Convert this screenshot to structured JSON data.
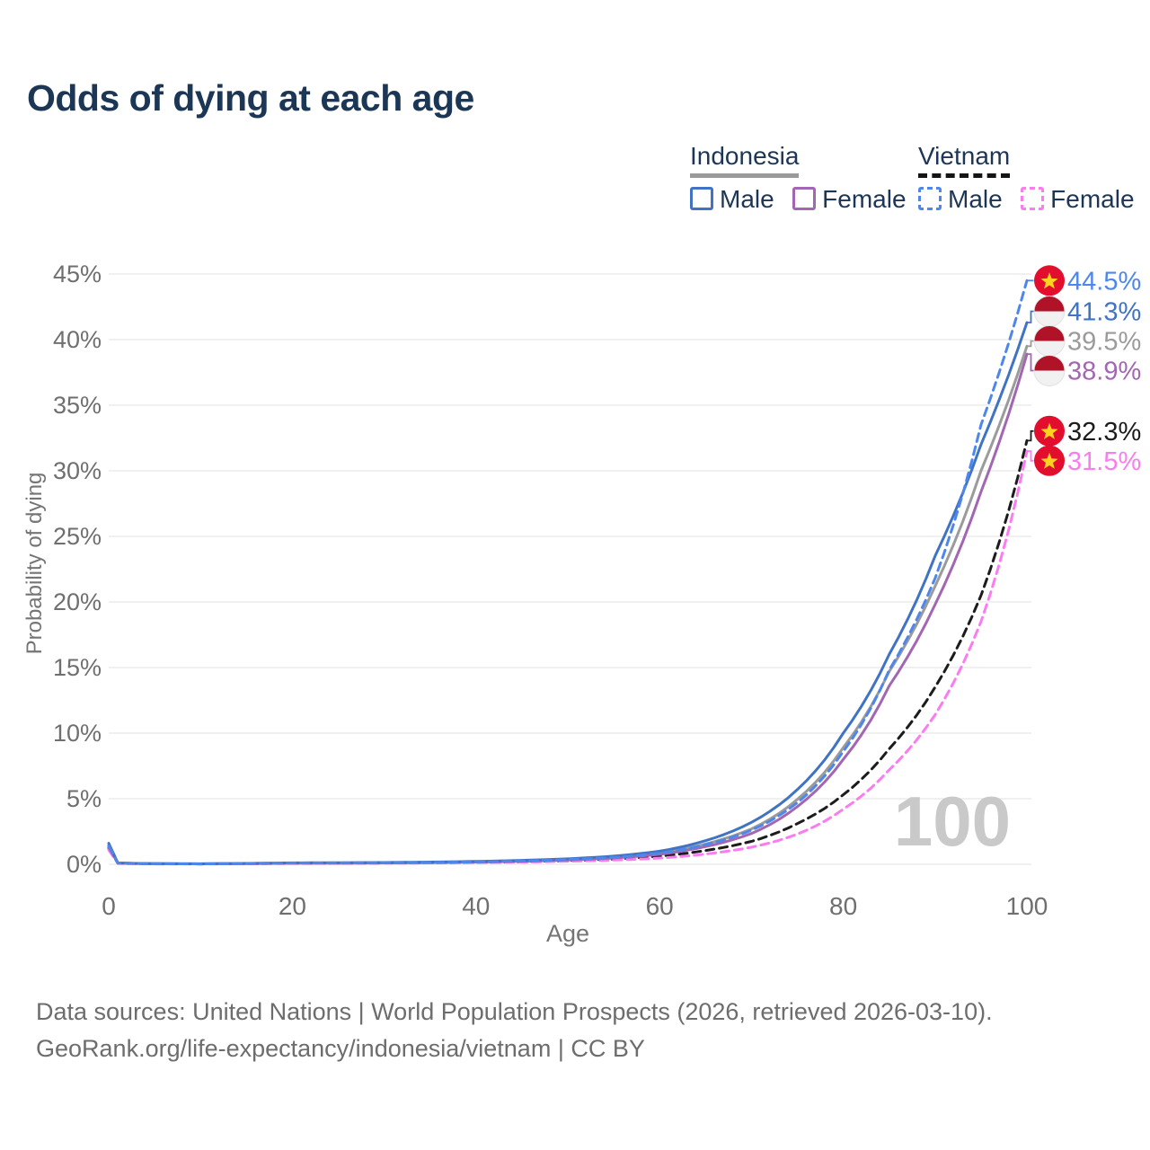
{
  "title": "Odds of dying at each age",
  "legend": {
    "groups": [
      {
        "name": "Indonesia",
        "underline": {
          "color": "#9a9a9a",
          "style": "solid"
        },
        "items": [
          {
            "label": "Male",
            "color": "#4173c4",
            "dashed": false
          },
          {
            "label": "Female",
            "color": "#a266b2",
            "dashed": false
          }
        ]
      },
      {
        "name": "Vietnam",
        "underline": {
          "color": "#151515",
          "style": "dashed"
        },
        "items": [
          {
            "label": "Male",
            "color": "#4e87ec",
            "dashed": true
          },
          {
            "label": "Female",
            "color": "#fa7cf0",
            "dashed": true
          }
        ]
      }
    ]
  },
  "chart_data": {
    "type": "line",
    "title": "Odds of dying at each age",
    "xlabel": "Age",
    "ylabel": "Probability of dying",
    "xlim": [
      0,
      100
    ],
    "ylim": [
      0,
      45
    ],
    "x_ticks": [
      0,
      20,
      40,
      60,
      80,
      100
    ],
    "y_ticks": [
      "0%",
      "5%",
      "10%",
      "15%",
      "20%",
      "25%",
      "30%",
      "35%",
      "40%",
      "45%"
    ],
    "grid": true,
    "legend_position": "top-right",
    "watermark": "100",
    "x": [
      0,
      1,
      5,
      10,
      15,
      20,
      25,
      30,
      35,
      40,
      45,
      50,
      55,
      60,
      65,
      70,
      75,
      80,
      85,
      90,
      95,
      100
    ],
    "series": [
      {
        "id": "vietnam-male",
        "name": "Vietnam Male",
        "country": "Vietnam",
        "sex": "male",
        "flag": "vietnam",
        "color": "#4e87ec",
        "dashed": true,
        "end_label": "44.5%",
        "end_value": 44.5,
        "values": [
          1.4,
          0.09,
          0.04,
          0.03,
          0.06,
          0.1,
          0.11,
          0.12,
          0.14,
          0.18,
          0.25,
          0.36,
          0.52,
          0.85,
          1.5,
          2.6,
          4.7,
          8.6,
          14.8,
          21.8,
          33.5,
          44.5
        ]
      },
      {
        "id": "indonesia-male",
        "name": "Indonesia Male",
        "country": "Indonesia",
        "sex": "male",
        "flag": "indonesia",
        "color": "#4173c4",
        "dashed": false,
        "end_label": "41.3%",
        "end_value": 41.3,
        "values": [
          1.6,
          0.1,
          0.05,
          0.04,
          0.07,
          0.11,
          0.12,
          0.14,
          0.17,
          0.22,
          0.3,
          0.42,
          0.62,
          1.0,
          1.8,
          3.2,
          5.7,
          10.0,
          16.0,
          23.5,
          32.0,
          41.3
        ]
      },
      {
        "id": "indonesia-both",
        "name": "Indonesia (both sexes)",
        "country": "Indonesia",
        "sex": "both",
        "flag": "indonesia",
        "color": "#9b9b9b",
        "dashed": false,
        "end_label": "39.5%",
        "end_value": 39.5,
        "values": [
          1.45,
          0.095,
          0.045,
          0.037,
          0.062,
          0.095,
          0.105,
          0.12,
          0.15,
          0.19,
          0.27,
          0.38,
          0.55,
          0.88,
          1.55,
          2.7,
          4.95,
          8.9,
          14.7,
          21.2,
          30.0,
          39.5
        ]
      },
      {
        "id": "indonesia-female",
        "name": "Indonesia Female",
        "country": "Indonesia",
        "sex": "female",
        "flag": "indonesia",
        "color": "#a266b2",
        "dashed": false,
        "end_label": "38.9%",
        "end_value": 38.9,
        "values": [
          1.3,
          0.09,
          0.04,
          0.033,
          0.05,
          0.08,
          0.09,
          0.1,
          0.13,
          0.17,
          0.23,
          0.33,
          0.48,
          0.76,
          1.35,
          2.35,
          4.4,
          8.0,
          13.6,
          19.8,
          28.4,
          38.9
        ]
      },
      {
        "id": "vietnam-both",
        "name": "Vietnam (both sexes)",
        "country": "Vietnam",
        "sex": "both",
        "flag": "vietnam",
        "color": "#1c1c1c",
        "dashed": true,
        "end_label": "32.3%",
        "end_value": 32.3,
        "values": [
          1.25,
          0.08,
          0.035,
          0.03,
          0.05,
          0.08,
          0.09,
          0.1,
          0.12,
          0.15,
          0.2,
          0.28,
          0.4,
          0.62,
          1.05,
          1.75,
          3.1,
          5.3,
          8.8,
          13.5,
          20.5,
          32.3
        ]
      },
      {
        "id": "vietnam-female",
        "name": "Vietnam Female",
        "country": "Vietnam",
        "sex": "female",
        "flag": "vietnam",
        "color": "#fa7cf0",
        "dashed": true,
        "end_label": "31.5%",
        "end_value": 31.5,
        "values": [
          1.1,
          0.07,
          0.03,
          0.025,
          0.04,
          0.06,
          0.07,
          0.08,
          0.1,
          0.13,
          0.17,
          0.23,
          0.32,
          0.47,
          0.78,
          1.3,
          2.3,
          4.2,
          7.2,
          11.4,
          18.5,
          31.5
        ]
      }
    ],
    "colors": {
      "grid": "#ececec",
      "tick_text": "#6f6f6f",
      "axis_title": "#757575",
      "watermark": "#c9c9c9",
      "title_text": "#1c3656",
      "footer_text": "#6d6d6d",
      "vietnam_flag_red": "#e30d2e",
      "vietnam_star_yellow": "#ffd21e",
      "indonesia_flag_red": "#b01327",
      "indonesia_flag_white": "#f1f1f1"
    }
  },
  "footer": {
    "line1": "Data sources: United Nations | World Population Prospects (2026, retrieved 2026-03-10).",
    "line2": "GeoRank.org/life-expectancy/indonesia/vietnam | CC BY"
  }
}
